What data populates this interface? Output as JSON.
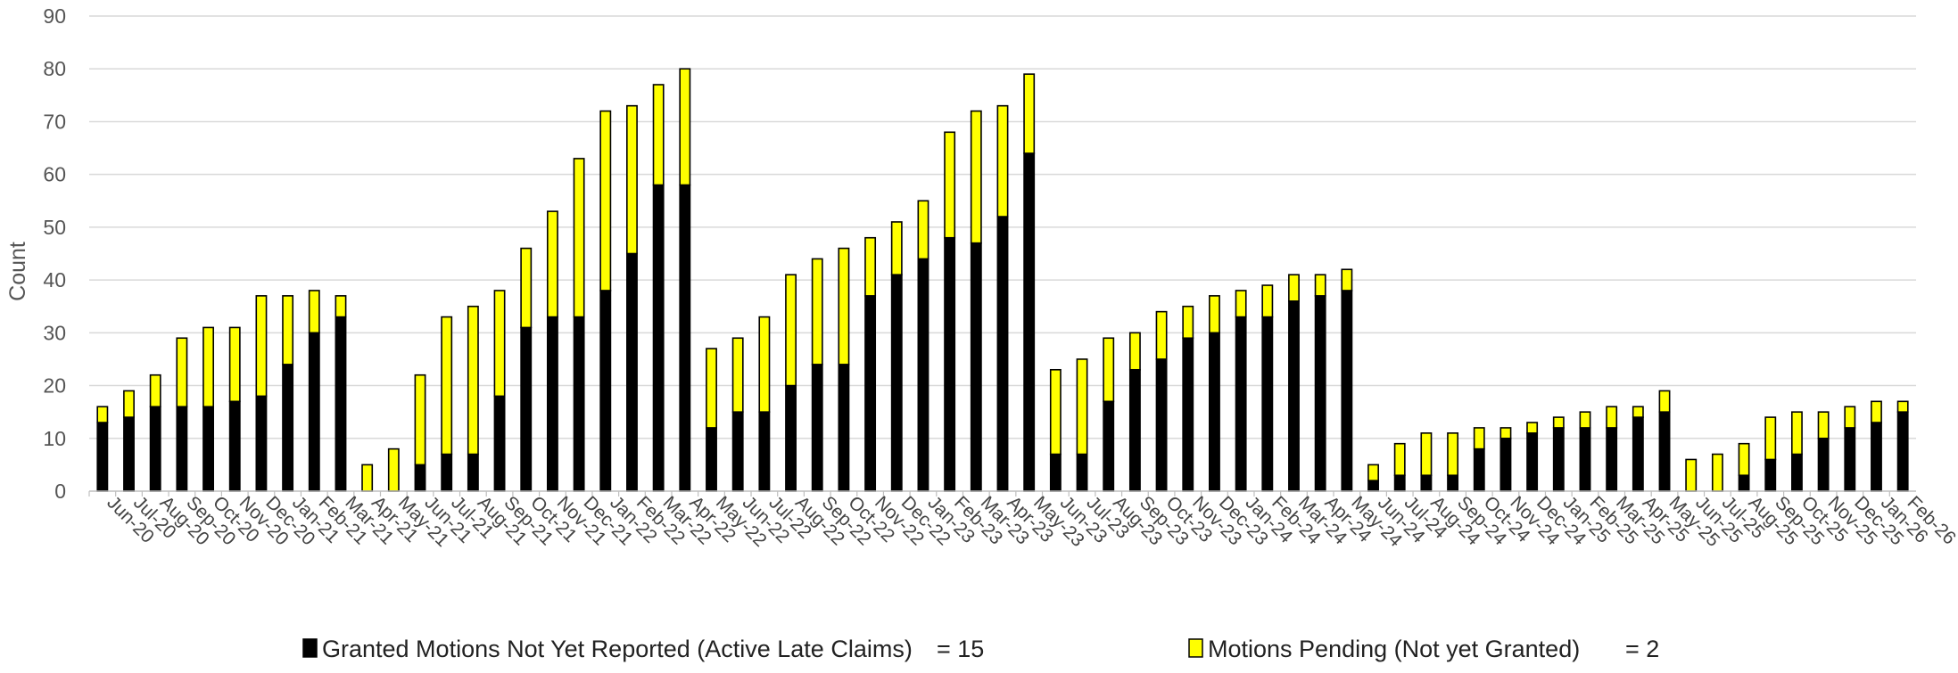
{
  "chart_data": {
    "type": "bar",
    "stacked": true,
    "ylabel": "Count",
    "xlabel": "",
    "title": "",
    "ylim": [
      0,
      90
    ],
    "yticks": [
      0,
      10,
      20,
      30,
      40,
      50,
      60,
      70,
      80,
      90
    ],
    "grid": true,
    "legend_position": "bottom",
    "categories": [
      "Jun-20",
      "Jul-20",
      "Aug-20",
      "Sep-20",
      "Oct-20",
      "Nov-20",
      "Dec-20",
      "Jan-21",
      "Feb-21",
      "Mar-21",
      "Apr-21",
      "May-21",
      "Jun-21",
      "Jul-21",
      "Aug-21",
      "Sep-21",
      "Oct-21",
      "Nov-21",
      "Dec-21",
      "Jan-22",
      "Feb-22",
      "Mar-22",
      "Apr-22",
      "May-22",
      "Jun-22",
      "Jul-22",
      "Aug-22",
      "Sep-22",
      "Oct-22",
      "Nov-22",
      "Dec-22",
      "Jan-23",
      "Feb-23",
      "Mar-23",
      "Apr-23",
      "May-23",
      "Jun-23",
      "Jul-23",
      "Aug-23",
      "Sep-23",
      "Oct-23",
      "Nov-23",
      "Dec-23",
      "Jan-24",
      "Feb-24",
      "Mar-24",
      "Apr-24",
      "May-24",
      "Jun-24",
      "Jul-24",
      "Aug-24",
      "Sep-24",
      "Oct-24",
      "Nov-24",
      "Dec-24",
      "Jan-25",
      "Feb-25",
      "Mar-25",
      "Apr-25",
      "May-25",
      "Jun-25",
      "Jul-25",
      "Aug-25",
      "Sep-25",
      "Oct-25",
      "Nov-25",
      "Dec-25",
      "Jan-26",
      "Feb-26"
    ],
    "series": [
      {
        "name": "Granted Motions Not Yet Reported (Active Late Claims)",
        "color": "#000000",
        "values": [
          13,
          14,
          16,
          16,
          16,
          17,
          18,
          24,
          30,
          33,
          0,
          0,
          5,
          7,
          7,
          18,
          31,
          33,
          33,
          38,
          45,
          58,
          58,
          12,
          15,
          15,
          20,
          24,
          24,
          37,
          41,
          44,
          48,
          47,
          52,
          64,
          7,
          7,
          17,
          23,
          25,
          29,
          30,
          33,
          33,
          36,
          37,
          38,
          2,
          3,
          3,
          3,
          8,
          10,
          11,
          12,
          12,
          12,
          14,
          15,
          0,
          0,
          3,
          6,
          7,
          10,
          12,
          13,
          15
        ]
      },
      {
        "name": "Motions Pending  (Not yet Granted)",
        "color": "#ffff00",
        "values": [
          3,
          5,
          6,
          13,
          15,
          14,
          19,
          13,
          8,
          4,
          5,
          8,
          17,
          26,
          28,
          20,
          15,
          20,
          30,
          34,
          28,
          19,
          22,
          15,
          14,
          18,
          21,
          20,
          22,
          11,
          10,
          11,
          20,
          25,
          21,
          15,
          16,
          18,
          12,
          7,
          9,
          6,
          7,
          5,
          6,
          5,
          4,
          4,
          3,
          6,
          8,
          8,
          4,
          2,
          2,
          2,
          3,
          4,
          2,
          4,
          6,
          7,
          6,
          8,
          8,
          5,
          4,
          4,
          2
        ]
      }
    ],
    "legend": [
      {
        "label": "Granted Motions Not Yet Reported (Active Late Claims)",
        "value_text": "= 15",
        "color": "#000000"
      },
      {
        "label": "Motions Pending  (Not yet Granted)",
        "value_text": "= 2",
        "color": "#ffff00"
      }
    ]
  }
}
